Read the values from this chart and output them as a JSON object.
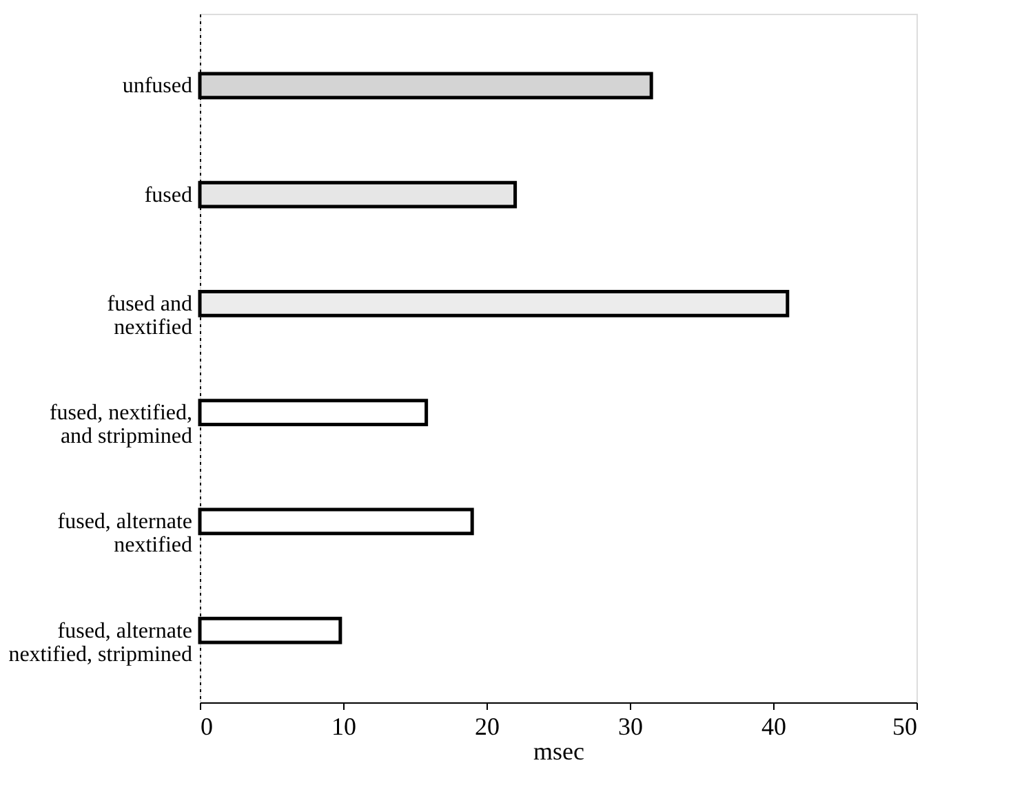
{
  "chart_data": {
    "type": "bar",
    "orientation": "horizontal",
    "xlabel": "msec",
    "categories": [
      "unfused",
      "fused",
      "fused and\nnextified",
      "fused, nextified,\nand stripmined",
      "fused, alternate\nnextified",
      "fused, alternate\nnextified, stripmined"
    ],
    "values": [
      31.5,
      22,
      41,
      15.8,
      19,
      9.8
    ],
    "colors": [
      "#d4d4d4",
      "#e6e6e6",
      "#ececec",
      "#ffffff",
      "#ffffff",
      "#ffffff"
    ],
    "xlim": [
      0,
      50
    ],
    "xticks": [
      0,
      10,
      20,
      30,
      40,
      50
    ],
    "grid": false
  }
}
